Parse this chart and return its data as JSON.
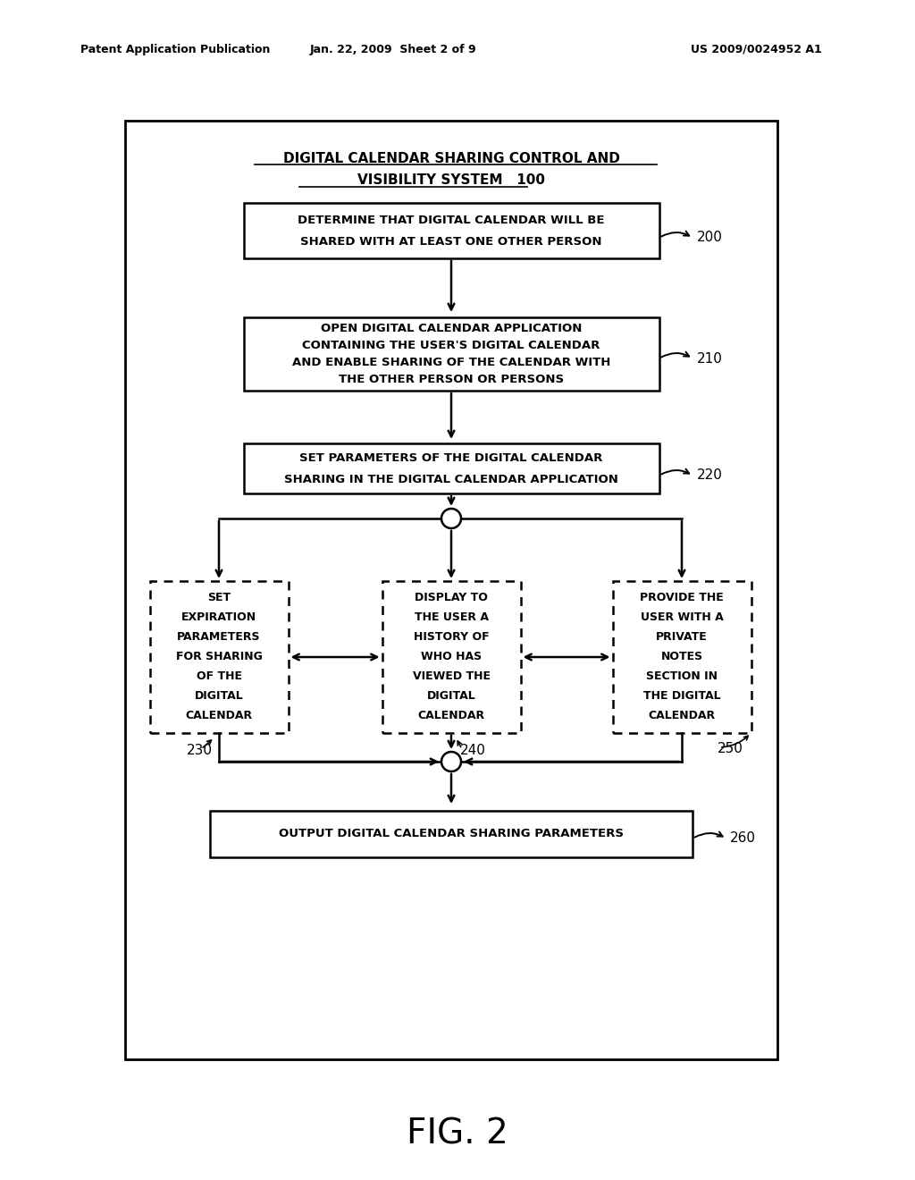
{
  "bg_color": "#ffffff",
  "header_left": "Patent Application Publication",
  "header_mid": "Jan. 22, 2009  Sheet 2 of 9",
  "header_right": "US 2009/0024952 A1",
  "fig_label": "FIG. 2",
  "title_line1": "DIGITAL CALENDAR SHARING CONTROL AND",
  "title_line2": "VISIBILITY SYSTEM   100",
  "box200_lines": [
    "DETERMINE THAT DIGITAL CALENDAR WILL BE",
    "SHARED WITH AT LEAST ONE OTHER PERSON"
  ],
  "box210_lines": [
    "OPEN DIGITAL CALENDAR APPLICATION",
    "CONTAINING THE USER'S DIGITAL CALENDAR",
    "AND ENABLE SHARING OF THE CALENDAR WITH",
    "THE OTHER PERSON OR PERSONS"
  ],
  "box220_lines": [
    "SET PARAMETERS OF THE DIGITAL CALENDAR",
    "SHARING IN THE DIGITAL CALENDAR APPLICATION"
  ],
  "box230_lines": [
    "SET",
    "EXPIRATION",
    "PARAMETERS",
    "FOR SHARING",
    "OF THE",
    "DIGITAL",
    "CALENDAR"
  ],
  "box240_lines": [
    "DISPLAY TO",
    "THE USER A",
    "HISTORY OF",
    "WHO HAS",
    "VIEWED THE",
    "DIGITAL",
    "CALENDAR"
  ],
  "box250_lines": [
    "PROVIDE THE",
    "USER WITH A",
    "PRIVATE",
    "NOTES",
    "SECTION IN",
    "THE DIGITAL",
    "CALENDAR"
  ],
  "box260_lines": [
    "OUTPUT DIGITAL CALENDAR SHARING PARAMETERS"
  ],
  "refs": {
    "200": "200",
    "210": "210",
    "220": "220",
    "230": "230",
    "240": "240",
    "250": "250",
    "260": "260"
  }
}
